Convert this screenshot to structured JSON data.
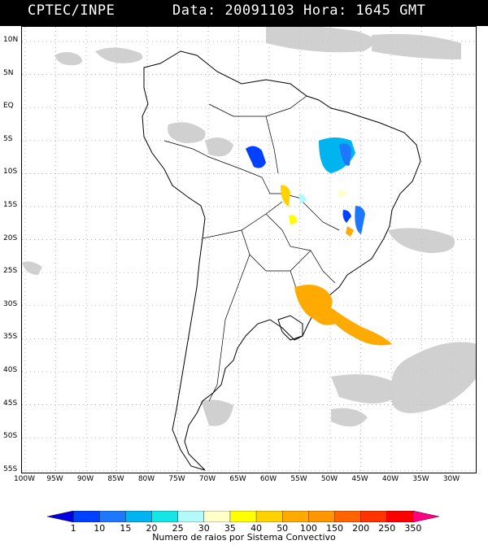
{
  "header": {
    "source": "CPTEC/INPE",
    "datetime": "Data: 20091103 Hora: 1645 GMT"
  },
  "map": {
    "lat_labels": [
      "10N",
      "5N",
      "EQ",
      "5S",
      "10S",
      "15S",
      "20S",
      "25S",
      "30S",
      "35S",
      "40S",
      "45S",
      "50S",
      "55S"
    ],
    "lon_labels": [
      "100W",
      "95W",
      "90W",
      "85W",
      "80W",
      "75W",
      "70W",
      "65W",
      "60W",
      "55W",
      "50W",
      "45W",
      "40W",
      "35W",
      "30W"
    ],
    "cloud_color": "#c8c8c8",
    "coast_color": "#000000",
    "grid_color": "#999999"
  },
  "legend": {
    "values": [
      "1",
      "10",
      "15",
      "20",
      "25",
      "30",
      "35",
      "40",
      "50",
      "100",
      "150",
      "200",
      "250",
      "350"
    ],
    "colors": [
      "#0000e0",
      "#0040ff",
      "#1e78ff",
      "#00b4f0",
      "#14e6e6",
      "#b4fafa",
      "#ffffc8",
      "#ffff00",
      "#ffd200",
      "#ffaa00",
      "#ff9600",
      "#ff6400",
      "#ff3200",
      "#ff0000",
      "#ff0080"
    ],
    "caption": "Numero de raios por Sistema Convectivo"
  }
}
